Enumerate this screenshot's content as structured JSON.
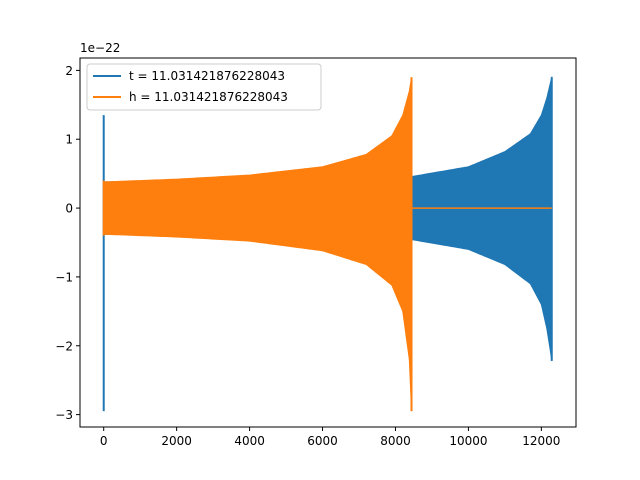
{
  "chart_data": {
    "type": "line",
    "title": "",
    "xlabel": "",
    "ylabel": "",
    "y_offset_label": "1e−22",
    "xlim": [
      -650,
      12950
    ],
    "ylim": [
      -3.18,
      2.18
    ],
    "x_ticks": [
      {
        "value": 0,
        "label": "0"
      },
      {
        "value": 2000,
        "label": "2000"
      },
      {
        "value": 4000,
        "label": "4000"
      },
      {
        "value": 6000,
        "label": "6000"
      },
      {
        "value": 8000,
        "label": "8000"
      },
      {
        "value": 10000,
        "label": "10000"
      },
      {
        "value": 12000,
        "label": "12000"
      }
    ],
    "y_ticks": [
      {
        "value": 2,
        "label": "2"
      },
      {
        "value": 1,
        "label": "1"
      },
      {
        "value": 0,
        "label": "0"
      },
      {
        "value": -1,
        "label": "−1"
      },
      {
        "value": -2,
        "label": "−2"
      },
      {
        "value": -3,
        "label": "−3"
      }
    ],
    "grid": false,
    "legend_position": "top-left",
    "series": [
      {
        "name": "t = 11.031421876228043",
        "color": "#1f77b4",
        "x_start": 0,
        "x_end": 12285,
        "spike_at_start": {
          "max": 1.35,
          "min": -2.95
        },
        "envelope": [
          [
            0,
            0.38,
            -0.38
          ],
          [
            8470,
            0.46,
            -0.46
          ],
          [
            10000,
            0.6,
            -0.6
          ],
          [
            11000,
            0.82,
            -0.82
          ],
          [
            11700,
            1.08,
            -1.1
          ],
          [
            12000,
            1.35,
            -1.4
          ],
          [
            12150,
            1.6,
            -1.75
          ],
          [
            12240,
            1.8,
            -2.05
          ],
          [
            12285,
            1.9,
            -2.22
          ]
        ]
      },
      {
        "name": "h = 11.031421876228043",
        "color": "#ff7f0e",
        "x_start": 0,
        "x_end": 12285,
        "tail_value": 0,
        "spike_at_start": {
          "max": 0.4,
          "min": -0.4
        },
        "envelope": [
          [
            0,
            0.38,
            -0.38
          ],
          [
            2000,
            0.42,
            -0.42
          ],
          [
            4000,
            0.48,
            -0.48
          ],
          [
            6000,
            0.6,
            -0.62
          ],
          [
            7200,
            0.78,
            -0.82
          ],
          [
            7900,
            1.05,
            -1.12
          ],
          [
            8200,
            1.35,
            -1.5
          ],
          [
            8380,
            1.7,
            -2.2
          ],
          [
            8440,
            1.9,
            -2.95
          ]
        ]
      }
    ]
  }
}
